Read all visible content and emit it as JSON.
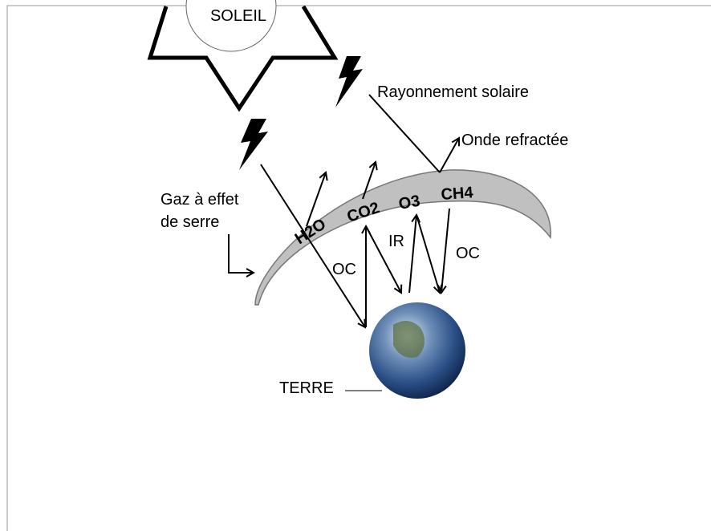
{
  "labels": {
    "sun": "SOLEIL",
    "solar_radiation": "Rayonnement solaire",
    "refracted_wave": "Onde refractée",
    "greenhouse_gas": [
      "Gaz à effet",
      "de serre"
    ],
    "earth": "TERRE",
    "ir": "IR",
    "oc_left": "OC",
    "oc_right": "OC"
  },
  "gases": [
    "H2O",
    "CO2",
    "O3",
    "CH4"
  ]
}
